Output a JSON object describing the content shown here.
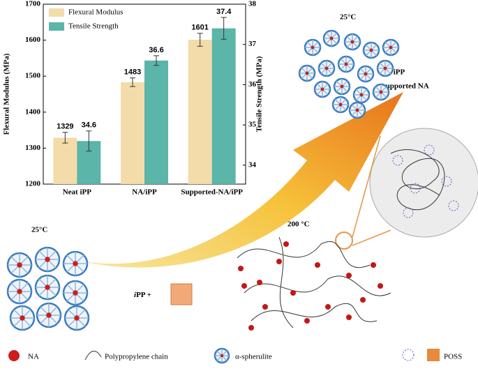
{
  "chart_data": {
    "type": "bar",
    "categories": [
      "Neat iPP",
      "NA/iPP",
      "Supported-NA/iPP"
    ],
    "ylabel": "Flexural Modulus (MPa)",
    "y2label": "Tensile Strength (MPa)",
    "series": [
      {
        "name": "Flexural Modulus",
        "color": "#f3dcaa",
        "values": [
          1329,
          1483,
          1601
        ],
        "errors": [
          15,
          12,
          18
        ]
      },
      {
        "name": "Tensile Strength",
        "color": "#5bb5a8",
        "axis": "y2",
        "values": [
          34.6,
          36.6,
          37.4
        ],
        "errors": [
          0.25,
          0.12,
          0.27
        ]
      }
    ],
    "ylim": [
      1200,
      1700
    ],
    "yticks": [
      1200,
      1300,
      1400,
      1500,
      1600,
      1700
    ],
    "y2lim": [
      33.53,
      38
    ],
    "y2ticks": [
      34,
      35,
      36,
      37,
      38
    ],
    "legend": "upper-left"
  },
  "diagram": {
    "top_temp": "25°C",
    "top_label": [
      "iPP",
      "/supported NA"
    ],
    "left_temp": "25°C",
    "mid_temp": "200 °C",
    "mix_label": [
      "i",
      "PP +"
    ],
    "legend": [
      "NA",
      "Polypropylene chain",
      "α-spherulite",
      "POSS"
    ]
  }
}
